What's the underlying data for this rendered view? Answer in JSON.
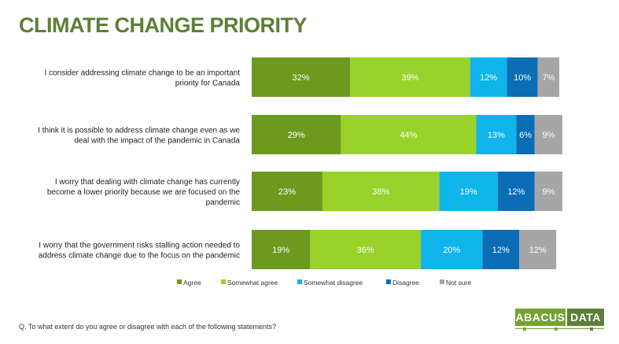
{
  "title": "CLIMATE CHANGE PRIORITY",
  "footnote": "Q. To what extent do you agree or disagree with each of the following statements?",
  "logo": {
    "left": "ABACUS",
    "right": "DATA"
  },
  "colors": {
    "title": "#5e7f37",
    "Agree": "#6b9a1f",
    "Somewhat agree": "#99d22a",
    "Somewhat disagree": "#0fb4ea",
    "Disagree": "#0a6db5",
    "Not sure": "#a6a6a6"
  },
  "chart_data": {
    "type": "bar",
    "orientation": "horizontal",
    "stacked": true,
    "categories": [
      "I consider addressing climate change to be an important priority for Canada",
      "I think it is possible to address climate change even as we deal with the impact of the pandemic in Canada",
      "I worry that dealing with climate change has currently become a lower priority because we are focused on the pandemic",
      "I worry that the government risks stalling action needed to address climate change due to the focus on the pandemic"
    ],
    "category_lines": [
      [
        "I consider addressing climate change to be an important",
        "priority for Canada"
      ],
      [
        "I think it is possible to address climate change even as we",
        "deal with the impact of the pandemic in Canada"
      ],
      [
        "I worry that dealing with climate change has currently",
        "become a lower priority because we are focused on the",
        "pandemic"
      ],
      [
        "I worry that the government risks stalling action needed to",
        "address climate change due to the focus on the pandemic"
      ]
    ],
    "series": [
      {
        "name": "Agree",
        "values": [
          32,
          29,
          23,
          19
        ]
      },
      {
        "name": "Somewhat agree",
        "values": [
          39,
          44,
          38,
          36
        ]
      },
      {
        "name": "Somewhat disagree",
        "values": [
          12,
          13,
          19,
          20
        ]
      },
      {
        "name": "Disagree",
        "values": [
          10,
          6,
          12,
          12
        ]
      },
      {
        "name": "Not sure",
        "values": [
          7,
          9,
          9,
          12
        ]
      }
    ],
    "value_suffix": "%",
    "legend_position": "bottom",
    "grid": false,
    "xlim": [
      0,
      101
    ]
  }
}
